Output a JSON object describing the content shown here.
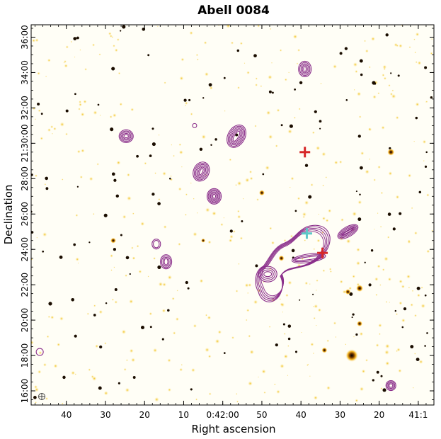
{
  "chart_data": {
    "type": "scatter",
    "title": "Abell 0084",
    "xlabel": "Right ascension",
    "ylabel": "Declination",
    "x_axis": {
      "direction": "decreasing",
      "tick_labels": [
        "40",
        "30",
        "20",
        "10",
        "0:42:00",
        "50",
        "40",
        "30",
        "20",
        "41:1"
      ],
      "tick_values_sec_offset": [
        40,
        30,
        20,
        10,
        0,
        -10,
        -20,
        -30,
        -40,
        -50
      ]
    },
    "y_axis": {
      "tick_labels": [
        "16:00",
        "18:00",
        "20:00",
        "22:00",
        "24:00",
        "26:00",
        "28:00",
        "21:30:00",
        "32:00",
        "34:00",
        "36:00"
      ],
      "tick_values_arcmin": [
        16,
        18,
        20,
        22,
        24,
        26,
        28,
        30,
        32,
        34,
        36
      ]
    },
    "xlim_sec_offset": [
      49,
      -54
    ],
    "ylim_arcmin": [
      15.2,
      36.7
    ],
    "background": "optical image (white to yellow to black)",
    "contour_color": "#8b2f8b",
    "markers": [
      {
        "symbol": "cross",
        "color": "#d62728",
        "x": -21,
        "y": 29.5
      },
      {
        "symbol": "cross",
        "color": "#d62728",
        "x": -25.5,
        "y": 23.8
      },
      {
        "symbol": "cross",
        "color": "#5ec8c8",
        "x": -21.5,
        "y": 24.9
      }
    ],
    "sources": [
      {
        "x": -15,
        "y": 23.5
      },
      {
        "x": -5,
        "y": 26.7
      },
      {
        "x": 24.7,
        "y": 30.4
      },
      {
        "x": -21,
        "y": 34.2
      },
      {
        "x": 14.4,
        "y": 23.6
      },
      {
        "x": 7.2,
        "y": 31
      },
      {
        "x": 46.8,
        "y": 18.2
      },
      {
        "x": -43,
        "y": 16.3
      }
    ],
    "beam_symbol": "circle-cross at lower-left"
  }
}
